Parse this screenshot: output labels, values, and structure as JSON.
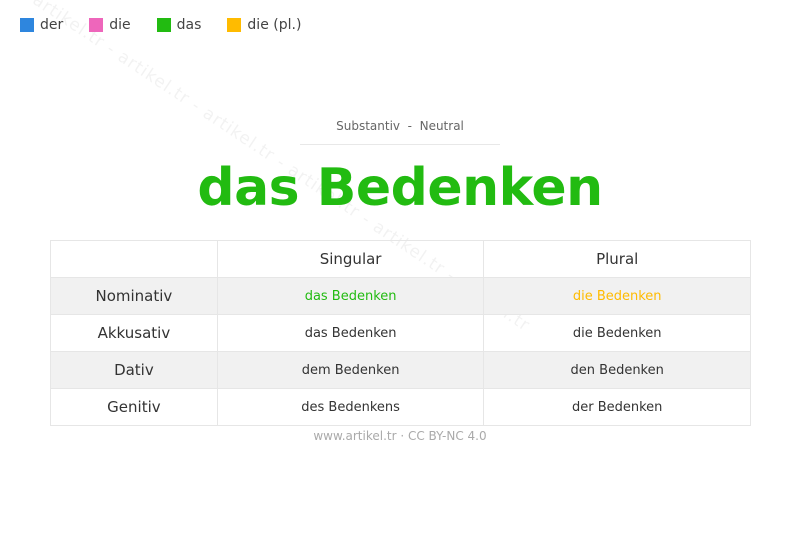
{
  "legend": [
    {
      "label": "der",
      "color": "#2e86de"
    },
    {
      "label": "die",
      "color": "#ee66bb"
    },
    {
      "label": "das",
      "color": "#22bb11"
    },
    {
      "label": "die (pl.)",
      "color": "#ffbb00"
    }
  ],
  "watermark": "artikel.tr - artikel.tr - artikel.tr - artikel.tr - artikel.tr - artikel.tr",
  "header": {
    "subtitle": "Substantiv  -  Neutral",
    "title": "das Bedenken",
    "title_color": "#22bb11"
  },
  "table": {
    "columns": [
      "",
      "Singular",
      "Plural"
    ],
    "rows": [
      {
        "case": "Nominativ",
        "singular": "das Bedenken",
        "plural": "die Bedenken"
      },
      {
        "case": "Akkusativ",
        "singular": "das Bedenken",
        "plural": "die Bedenken"
      },
      {
        "case": "Dativ",
        "singular": "dem Bedenken",
        "plural": "den Bedenken"
      },
      {
        "case": "Genitiv",
        "singular": "des Bedenkens",
        "plural": "der Bedenken"
      }
    ]
  },
  "footer": "www.artikel.tr · CC BY-NC 4.0"
}
